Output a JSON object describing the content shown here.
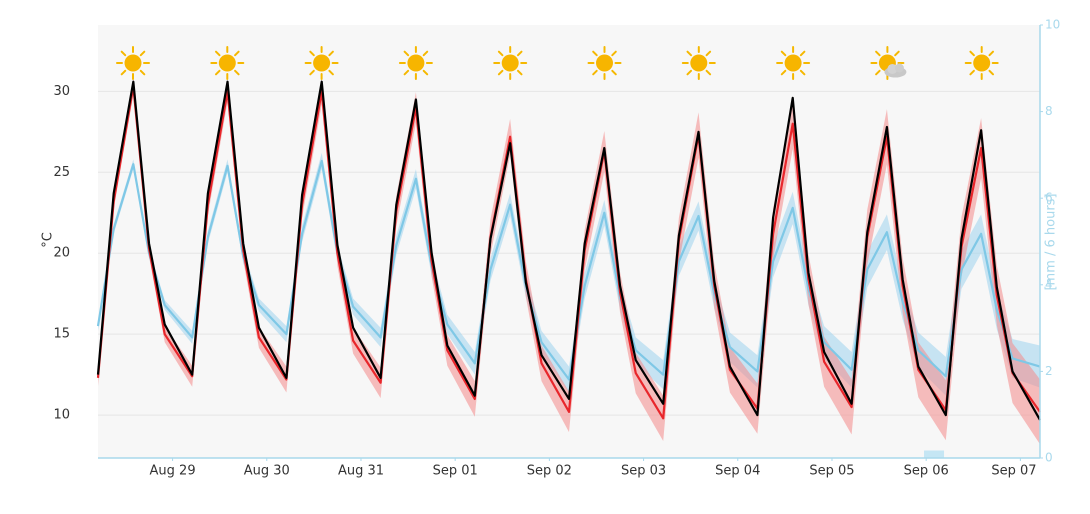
{
  "chart_data": {
    "type": "line",
    "ylabel": "°C",
    "y2label": "[mm / 6 hours]",
    "x": [
      -19,
      -15,
      -10,
      -6,
      -2,
      5,
      9,
      14,
      18,
      22,
      29,
      33,
      38,
      42,
      46,
      53,
      57,
      62,
      66,
      70,
      77,
      81,
      86,
      90,
      94,
      101,
      105,
      110,
      114,
      118,
      125,
      129,
      134,
      138,
      142,
      149,
      153,
      158,
      162,
      166,
      173,
      177,
      182,
      186,
      190,
      197,
      201,
      206,
      210,
      214,
      221
    ],
    "xlim": [
      -19,
      221
    ],
    "xticks": [
      {
        "value": 0,
        "label": "Aug 29"
      },
      {
        "value": 24,
        "label": "Aug 30"
      },
      {
        "value": 48,
        "label": "Aug 31"
      },
      {
        "value": 72,
        "label": "Sep 01"
      },
      {
        "value": 96,
        "label": "Sep 02"
      },
      {
        "value": 120,
        "label": "Sep 03"
      },
      {
        "value": 144,
        "label": "Sep 04"
      },
      {
        "value": 168,
        "label": "Sep 05"
      },
      {
        "value": 192,
        "label": "Sep 06"
      },
      {
        "value": 216,
        "label": "Sep 07"
      }
    ],
    "ylim": [
      7.35,
      34.1
    ],
    "yticks": [
      10,
      15,
      20,
      25,
      30
    ],
    "y2lim": [
      0,
      10
    ],
    "y2ticks": [
      0,
      2,
      4,
      6,
      8,
      10
    ],
    "grid": true,
    "series": [
      {
        "color": "#7fc8e6",
        "band_color": "#9fd4ee",
        "values": [
          15.5,
          21.5,
          25.5,
          20.0,
          16.8,
          14.8,
          21.0,
          25.4,
          19.8,
          16.8,
          15.0,
          21.2,
          25.7,
          20.0,
          16.7,
          14.8,
          20.5,
          24.6,
          19.2,
          15.6,
          13.2,
          19.0,
          23.0,
          18.0,
          14.5,
          12.2,
          18.0,
          22.5,
          17.3,
          14.0,
          12.5,
          19.5,
          22.3,
          17.5,
          14.2,
          12.7,
          19.5,
          22.8,
          17.8,
          14.5,
          12.8,
          19.0,
          21.3,
          17.0,
          14.0,
          12.4,
          19.0,
          21.2,
          16.5,
          13.5,
          13.0
        ],
        "error": [
          0.3,
          0.3,
          0.3,
          0.3,
          0.3,
          0.4,
          0.4,
          0.4,
          0.4,
          0.4,
          0.5,
          0.5,
          0.5,
          0.5,
          0.5,
          0.6,
          0.6,
          0.6,
          0.6,
          0.6,
          0.7,
          0.7,
          0.7,
          0.7,
          0.7,
          0.8,
          0.8,
          0.8,
          0.8,
          0.8,
          0.9,
          0.9,
          0.9,
          0.9,
          0.9,
          1.0,
          1.0,
          1.0,
          1.0,
          1.0,
          1.1,
          1.1,
          1.1,
          1.1,
          1.1,
          1.2,
          1.2,
          1.2,
          1.2,
          1.2,
          1.3
        ]
      },
      {
        "color": "#e8262b",
        "band_color": "#f48a8a",
        "values": [
          12.3,
          23.2,
          30.3,
          20.3,
          15.0,
          12.4,
          23.0,
          30.0,
          20.2,
          14.8,
          12.2,
          23.0,
          30.0,
          20.0,
          14.6,
          12.0,
          22.6,
          29.0,
          19.5,
          14.0,
          11.0,
          21.0,
          27.2,
          18.4,
          13.2,
          10.2,
          20.2,
          26.3,
          17.6,
          12.6,
          9.8,
          20.8,
          27.3,
          18.0,
          12.8,
          10.4,
          21.2,
          28.0,
          18.4,
          13.3,
          10.5,
          21.0,
          27.2,
          18.0,
          12.8,
          10.3,
          20.4,
          26.5,
          17.4,
          12.6,
          10.2
        ],
        "error": [
          0.5,
          0.5,
          0.5,
          0.5,
          0.5,
          0.65,
          0.65,
          0.65,
          0.65,
          0.65,
          0.8,
          0.8,
          0.8,
          0.8,
          0.8,
          0.95,
          0.95,
          0.95,
          0.95,
          0.95,
          1.1,
          1.1,
          1.1,
          1.1,
          1.1,
          1.25,
          1.25,
          1.25,
          1.25,
          1.25,
          1.4,
          1.4,
          1.4,
          1.4,
          1.4,
          1.55,
          1.55,
          1.55,
          1.55,
          1.55,
          1.7,
          1.7,
          1.7,
          1.7,
          1.7,
          1.85,
          1.85,
          1.85,
          1.85,
          1.85,
          2.0
        ]
      },
      {
        "color": "#000000",
        "values": [
          12.5,
          23.7,
          30.6,
          20.6,
          15.6,
          12.5,
          23.7,
          30.6,
          20.6,
          15.4,
          12.3,
          23.6,
          30.6,
          20.5,
          15.4,
          12.3,
          23.0,
          29.5,
          20.0,
          14.3,
          11.2,
          20.9,
          26.8,
          18.2,
          13.7,
          11.0,
          20.6,
          26.5,
          18.0,
          13.4,
          10.7,
          21.1,
          27.5,
          18.3,
          13.0,
          10.0,
          22.2,
          29.6,
          18.8,
          13.9,
          10.7,
          21.3,
          27.8,
          18.4,
          13.0,
          10.0,
          20.9,
          27.6,
          17.9,
          12.7,
          9.7
        ]
      },
      {
        "type": "bar",
        "axis": "y2",
        "color": "#c5e6f4",
        "x": [
          194
        ],
        "values": [
          0.15
        ]
      }
    ]
  }
}
